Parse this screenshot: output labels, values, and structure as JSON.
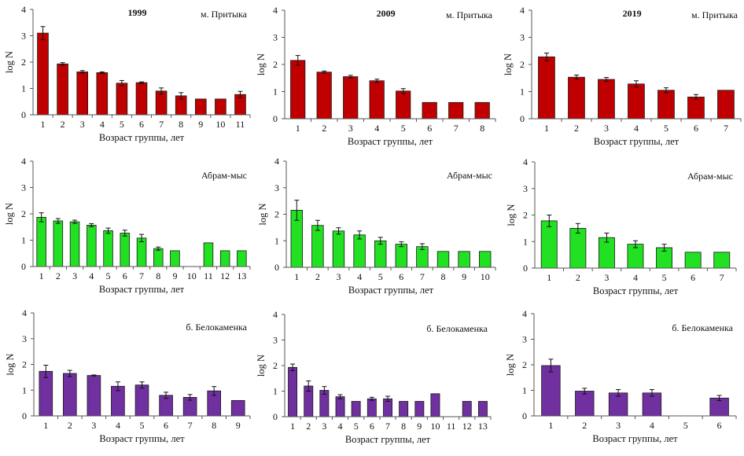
{
  "figure": {
    "y_axis_label": "log N",
    "x_axis_label": "Возраст группы, лет"
  },
  "colors": {
    "м. Притыка": "#c00000",
    "Абрам-мыс": "#22e022",
    "б. Белокаменка": "#7030a0",
    "outline": "#1a1a1a",
    "axis": "#555555"
  },
  "chart_data": [
    {
      "type": "bar",
      "title": "1999",
      "site": "м. Притыка",
      "xlabel": "Возраст группы, лет",
      "ylabel": "log N",
      "ylim": [
        0,
        4
      ],
      "yticks": [
        0,
        1,
        2,
        3,
        4
      ],
      "grid": false,
      "categories": [
        "1",
        "2",
        "3",
        "4",
        "5",
        "6",
        "7",
        "8",
        "9",
        "10",
        "11"
      ],
      "values": [
        3.1,
        1.93,
        1.63,
        1.6,
        1.2,
        1.22,
        0.9,
        0.72,
        0.6,
        0.6,
        0.77
      ],
      "errors": [
        0.25,
        0.05,
        0.05,
        0.03,
        0.1,
        0.03,
        0.12,
        0.12,
        0,
        0,
        0.12
      ]
    },
    {
      "type": "bar",
      "title": "2009",
      "site": "м. Притыка",
      "xlabel": "Возраст группы, лет",
      "ylabel": "log N",
      "ylim": [
        0,
        4
      ],
      "yticks": [
        0,
        1,
        2,
        3,
        4
      ],
      "grid": false,
      "categories": [
        "1",
        "2",
        "3",
        "4",
        "5",
        "6",
        "7",
        "8"
      ],
      "values": [
        2.15,
        1.72,
        1.55,
        1.4,
        1.02,
        0.6,
        0.6,
        0.6
      ],
      "errors": [
        0.18,
        0.04,
        0.05,
        0.06,
        0.09,
        0,
        0,
        0
      ]
    },
    {
      "type": "bar",
      "title": "2019",
      "site": "м. Притыка",
      "xlabel": "Возраст группы, лет",
      "ylabel": "log N",
      "ylim": [
        0,
        4
      ],
      "yticks": [
        0,
        1,
        2,
        3,
        4
      ],
      "grid": false,
      "categories": [
        "1",
        "2",
        "3",
        "4",
        "5",
        "6",
        "7"
      ],
      "values": [
        2.28,
        1.53,
        1.45,
        1.28,
        1.05,
        0.8,
        1.05
      ],
      "errors": [
        0.14,
        0.08,
        0.07,
        0.12,
        0.09,
        0.09,
        0
      ]
    },
    {
      "type": "bar",
      "title": "",
      "site": "Абрам-мыс",
      "xlabel": "Возраст группы, лет",
      "ylabel": "log N",
      "ylim": [
        0,
        4
      ],
      "yticks": [
        0,
        1,
        2,
        3,
        4
      ],
      "grid": false,
      "categories": [
        "1",
        "2",
        "3",
        "4",
        "5",
        "6",
        "7",
        "8",
        "9",
        "10",
        "11",
        "12",
        "13"
      ],
      "values": [
        1.87,
        1.73,
        1.7,
        1.57,
        1.36,
        1.27,
        1.08,
        0.68,
        0.6,
        0,
        0.9,
        0.6,
        0.6
      ],
      "errors": [
        0.17,
        0.09,
        0.06,
        0.06,
        0.1,
        0.11,
        0.14,
        0.06,
        0,
        0,
        0,
        0,
        0
      ]
    },
    {
      "type": "bar",
      "title": "",
      "site": "Абрам-мыс",
      "xlabel": "Возраст группы, лет",
      "ylabel": "log N",
      "ylim": [
        0,
        4
      ],
      "yticks": [
        0,
        1,
        2,
        3,
        4
      ],
      "grid": false,
      "categories": [
        "1",
        "2",
        "3",
        "4",
        "5",
        "6",
        "7",
        "8",
        "9",
        "10"
      ],
      "values": [
        2.15,
        1.58,
        1.37,
        1.22,
        1.0,
        0.87,
        0.78,
        0.6,
        0.6,
        0.6
      ],
      "errors": [
        0.38,
        0.19,
        0.12,
        0.15,
        0.13,
        0.09,
        0.11,
        0,
        0,
        0
      ]
    },
    {
      "type": "bar",
      "title": "",
      "site": "Абрам-мыс",
      "xlabel": "Возраст группы, лет",
      "ylabel": "log N",
      "ylim": [
        0,
        4
      ],
      "yticks": [
        0,
        1,
        2,
        3,
        4
      ],
      "grid": false,
      "categories": [
        "1",
        "2",
        "3",
        "4",
        "5",
        "6",
        "7"
      ],
      "values": [
        1.78,
        1.5,
        1.15,
        0.9,
        0.77,
        0.6,
        0.6
      ],
      "errors": [
        0.22,
        0.18,
        0.17,
        0.13,
        0.13,
        0,
        0
      ]
    },
    {
      "type": "bar",
      "title": "",
      "site": "б. Белокаменка",
      "xlabel": "Возраст группы, лет",
      "ylabel": "log N",
      "ylim": [
        0,
        4
      ],
      "yticks": [
        0,
        1,
        2,
        3,
        4
      ],
      "grid": false,
      "categories": [
        "1",
        "2",
        "3",
        "4",
        "5",
        "6",
        "7",
        "8",
        "9"
      ],
      "values": [
        1.73,
        1.65,
        1.57,
        1.15,
        1.2,
        0.8,
        0.72,
        0.97,
        0.6
      ],
      "errors": [
        0.24,
        0.12,
        0.02,
        0.17,
        0.12,
        0.12,
        0.11,
        0.17,
        0
      ]
    },
    {
      "type": "bar",
      "title": "",
      "site": "б. Белокаменка",
      "xlabel": "Возраст группы, лет",
      "ylabel": "log N",
      "ylim": [
        0,
        4
      ],
      "yticks": [
        0,
        1,
        2,
        3,
        4
      ],
      "grid": false,
      "categories": [
        "1",
        "2",
        "3",
        "4",
        "5",
        "6",
        "7",
        "8",
        "9",
        "10",
        "11",
        "12",
        "13"
      ],
      "values": [
        1.93,
        1.2,
        1.03,
        0.78,
        0.6,
        0.7,
        0.7,
        0.6,
        0.6,
        0.9,
        0,
        0.6,
        0.6
      ],
      "errors": [
        0.13,
        0.2,
        0.15,
        0.08,
        0,
        0.06,
        0.1,
        0,
        0,
        0,
        0,
        0,
        0
      ]
    },
    {
      "type": "bar",
      "title": "",
      "site": "б. Белокаменка",
      "xlabel": "Возраст группы, лет",
      "ylabel": "log N",
      "ylim": [
        0,
        4
      ],
      "yticks": [
        0,
        1,
        2,
        3,
        4
      ],
      "grid": false,
      "categories": [
        "1",
        "2",
        "3",
        "4",
        "5",
        "6"
      ],
      "values": [
        1.97,
        0.97,
        0.9,
        0.9,
        0,
        0.7
      ],
      "errors": [
        0.25,
        0.11,
        0.13,
        0.13,
        0,
        0.1
      ]
    }
  ]
}
